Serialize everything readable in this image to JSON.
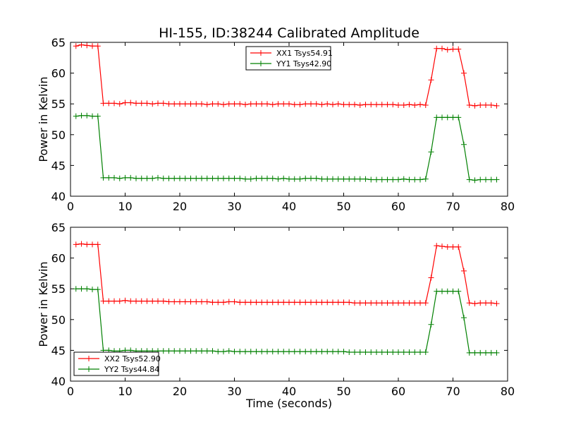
{
  "title": "HI-155, ID:38244 Calibrated Amplitude",
  "xlabel": "Time (seconds)",
  "colors": {
    "xx": "#ff0000",
    "yy": "#008000"
  },
  "chart_data": [
    {
      "type": "line",
      "ylabel": "Power in Kelvin",
      "xlim": [
        0,
        80
      ],
      "ylim": [
        40,
        65
      ],
      "xticks": [
        "0",
        "10",
        "20",
        "30",
        "40",
        "50",
        "60",
        "70",
        "80"
      ],
      "yticks": [
        "40",
        "45",
        "50",
        "55",
        "60",
        "65"
      ],
      "legend_position": "top-center",
      "x": [
        1,
        2,
        3,
        4,
        5,
        6,
        7,
        8,
        9,
        10,
        11,
        12,
        13,
        14,
        15,
        16,
        17,
        18,
        19,
        20,
        21,
        22,
        23,
        24,
        25,
        26,
        27,
        28,
        29,
        30,
        31,
        32,
        33,
        34,
        35,
        36,
        37,
        38,
        39,
        40,
        41,
        42,
        43,
        44,
        45,
        46,
        47,
        48,
        49,
        50,
        51,
        52,
        53,
        54,
        55,
        56,
        57,
        58,
        59,
        60,
        61,
        62,
        63,
        64,
        65,
        66,
        67,
        68,
        69,
        70,
        71,
        72,
        73,
        74,
        75,
        76,
        77,
        78
      ],
      "series": [
        {
          "name": "XX1 Tsys54.91",
          "color": "#ff0000",
          "values": [
            64.4,
            64.6,
            64.5,
            64.4,
            64.4,
            55.1,
            55.1,
            55.1,
            55.0,
            55.2,
            55.2,
            55.1,
            55.1,
            55.1,
            55.0,
            55.1,
            55.1,
            55.0,
            55.0,
            55.0,
            55.0,
            55.0,
            55.0,
            55.0,
            54.9,
            55.0,
            55.0,
            54.9,
            55.0,
            55.0,
            55.0,
            54.9,
            55.0,
            55.0,
            55.0,
            55.0,
            54.9,
            55.0,
            55.0,
            55.0,
            54.9,
            54.9,
            55.0,
            55.0,
            55.0,
            54.9,
            55.0,
            54.9,
            55.0,
            54.9,
            54.9,
            54.9,
            54.8,
            54.9,
            54.9,
            54.9,
            54.9,
            54.9,
            54.9,
            54.8,
            54.8,
            54.9,
            54.8,
            54.9,
            54.8,
            58.9,
            64.0,
            64.0,
            63.8,
            63.9,
            63.9,
            60.0,
            54.8,
            54.7,
            54.8,
            54.8,
            54.8,
            54.7
          ]
        },
        {
          "name": "YY1 Tsys42.90",
          "color": "#008000",
          "values": [
            53.0,
            53.1,
            53.1,
            53.0,
            53.0,
            43.0,
            43.0,
            43.0,
            42.9,
            43.0,
            43.0,
            42.9,
            42.9,
            42.9,
            42.9,
            43.0,
            42.9,
            42.9,
            42.9,
            42.9,
            42.9,
            42.9,
            42.9,
            42.9,
            42.9,
            42.9,
            42.9,
            42.9,
            42.9,
            42.9,
            42.9,
            42.8,
            42.8,
            42.9,
            42.9,
            42.9,
            42.9,
            42.8,
            42.9,
            42.8,
            42.8,
            42.8,
            42.9,
            42.9,
            42.9,
            42.8,
            42.8,
            42.8,
            42.8,
            42.8,
            42.8,
            42.8,
            42.8,
            42.8,
            42.7,
            42.7,
            42.7,
            42.7,
            42.7,
            42.7,
            42.8,
            42.7,
            42.7,
            42.7,
            42.8,
            47.2,
            52.8,
            52.8,
            52.8,
            52.8,
            52.8,
            48.4,
            42.7,
            42.6,
            42.7,
            42.7,
            42.7,
            42.7
          ]
        }
      ]
    },
    {
      "type": "line",
      "ylabel": "Power in Kelvin",
      "xlim": [
        0,
        80
      ],
      "ylim": [
        40,
        65
      ],
      "xticks": [
        "0",
        "10",
        "20",
        "30",
        "40",
        "50",
        "60",
        "70",
        "80"
      ],
      "yticks": [
        "40",
        "45",
        "50",
        "55",
        "60",
        "65"
      ],
      "legend_position": "bottom-left",
      "x": [
        1,
        2,
        3,
        4,
        5,
        6,
        7,
        8,
        9,
        10,
        11,
        12,
        13,
        14,
        15,
        16,
        17,
        18,
        19,
        20,
        21,
        22,
        23,
        24,
        25,
        26,
        27,
        28,
        29,
        30,
        31,
        32,
        33,
        34,
        35,
        36,
        37,
        38,
        39,
        40,
        41,
        42,
        43,
        44,
        45,
        46,
        47,
        48,
        49,
        50,
        51,
        52,
        53,
        54,
        55,
        56,
        57,
        58,
        59,
        60,
        61,
        62,
        63,
        64,
        65,
        66,
        67,
        68,
        69,
        70,
        71,
        72,
        73,
        74,
        75,
        76,
        77,
        78
      ],
      "series": [
        {
          "name": "XX2 Tsys52.90",
          "color": "#ff0000",
          "values": [
            62.2,
            62.3,
            62.2,
            62.2,
            62.2,
            53.0,
            53.0,
            53.0,
            53.0,
            53.1,
            53.0,
            53.0,
            53.0,
            53.0,
            53.0,
            53.0,
            53.0,
            52.9,
            52.9,
            52.9,
            52.9,
            52.9,
            52.9,
            52.9,
            52.9,
            52.8,
            52.8,
            52.8,
            52.9,
            52.9,
            52.8,
            52.8,
            52.8,
            52.8,
            52.8,
            52.8,
            52.8,
            52.8,
            52.8,
            52.8,
            52.8,
            52.8,
            52.8,
            52.8,
            52.8,
            52.8,
            52.8,
            52.8,
            52.8,
            52.8,
            52.8,
            52.7,
            52.7,
            52.7,
            52.7,
            52.7,
            52.7,
            52.7,
            52.7,
            52.7,
            52.7,
            52.7,
            52.7,
            52.7,
            52.7,
            56.8,
            62.0,
            61.9,
            61.8,
            61.8,
            61.8,
            57.9,
            52.7,
            52.6,
            52.7,
            52.7,
            52.7,
            52.6
          ]
        },
        {
          "name": "YY2 Tsys44.84",
          "color": "#008000",
          "values": [
            55.0,
            55.0,
            55.0,
            54.9,
            54.9,
            45.0,
            45.0,
            44.9,
            44.9,
            45.0,
            45.0,
            44.9,
            44.9,
            44.9,
            44.9,
            44.9,
            44.9,
            44.9,
            44.9,
            44.9,
            44.9,
            44.9,
            44.9,
            44.9,
            44.9,
            44.9,
            44.8,
            44.8,
            44.9,
            44.8,
            44.8,
            44.8,
            44.8,
            44.8,
            44.8,
            44.8,
            44.8,
            44.8,
            44.8,
            44.8,
            44.8,
            44.8,
            44.8,
            44.8,
            44.8,
            44.8,
            44.8,
            44.8,
            44.8,
            44.8,
            44.7,
            44.7,
            44.7,
            44.7,
            44.7,
            44.7,
            44.7,
            44.7,
            44.7,
            44.7,
            44.7,
            44.7,
            44.7,
            44.7,
            44.7,
            49.2,
            54.6,
            54.6,
            54.6,
            54.6,
            54.6,
            50.3,
            44.6,
            44.6,
            44.6,
            44.6,
            44.6,
            44.6
          ]
        }
      ]
    }
  ]
}
